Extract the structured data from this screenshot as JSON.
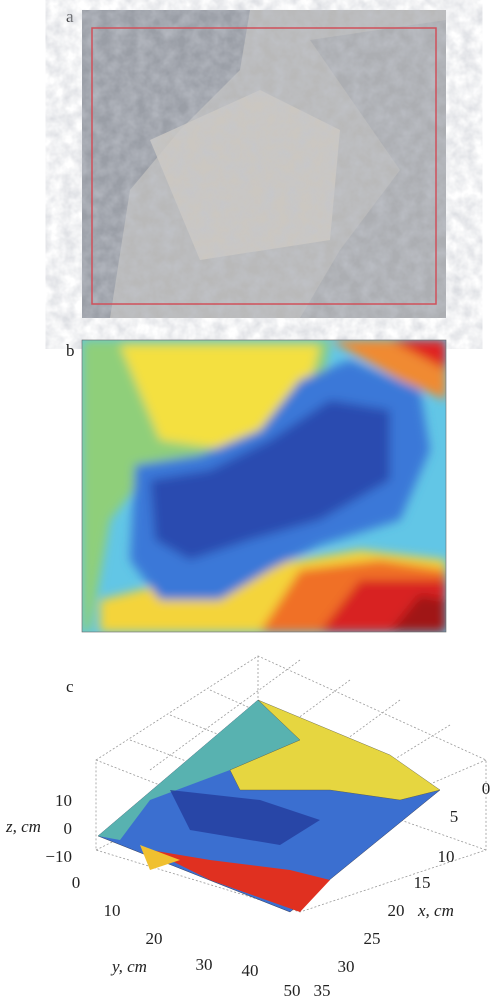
{
  "panels": [
    {
      "label": "a"
    },
    {
      "label": "b"
    },
    {
      "label": "c",
      "axes": {
        "z": {
          "label": "z, cm",
          "ticks": [
            "10",
            "0",
            "−10"
          ]
        },
        "y": {
          "label": "y, cm",
          "ticks": [
            "0",
            "10",
            "20",
            "30",
            "40",
            "50"
          ]
        },
        "x": {
          "label": "x, cm",
          "ticks": [
            "0",
            "5",
            "10",
            "15",
            "20",
            "25",
            "30",
            "35"
          ]
        }
      }
    }
  ]
}
